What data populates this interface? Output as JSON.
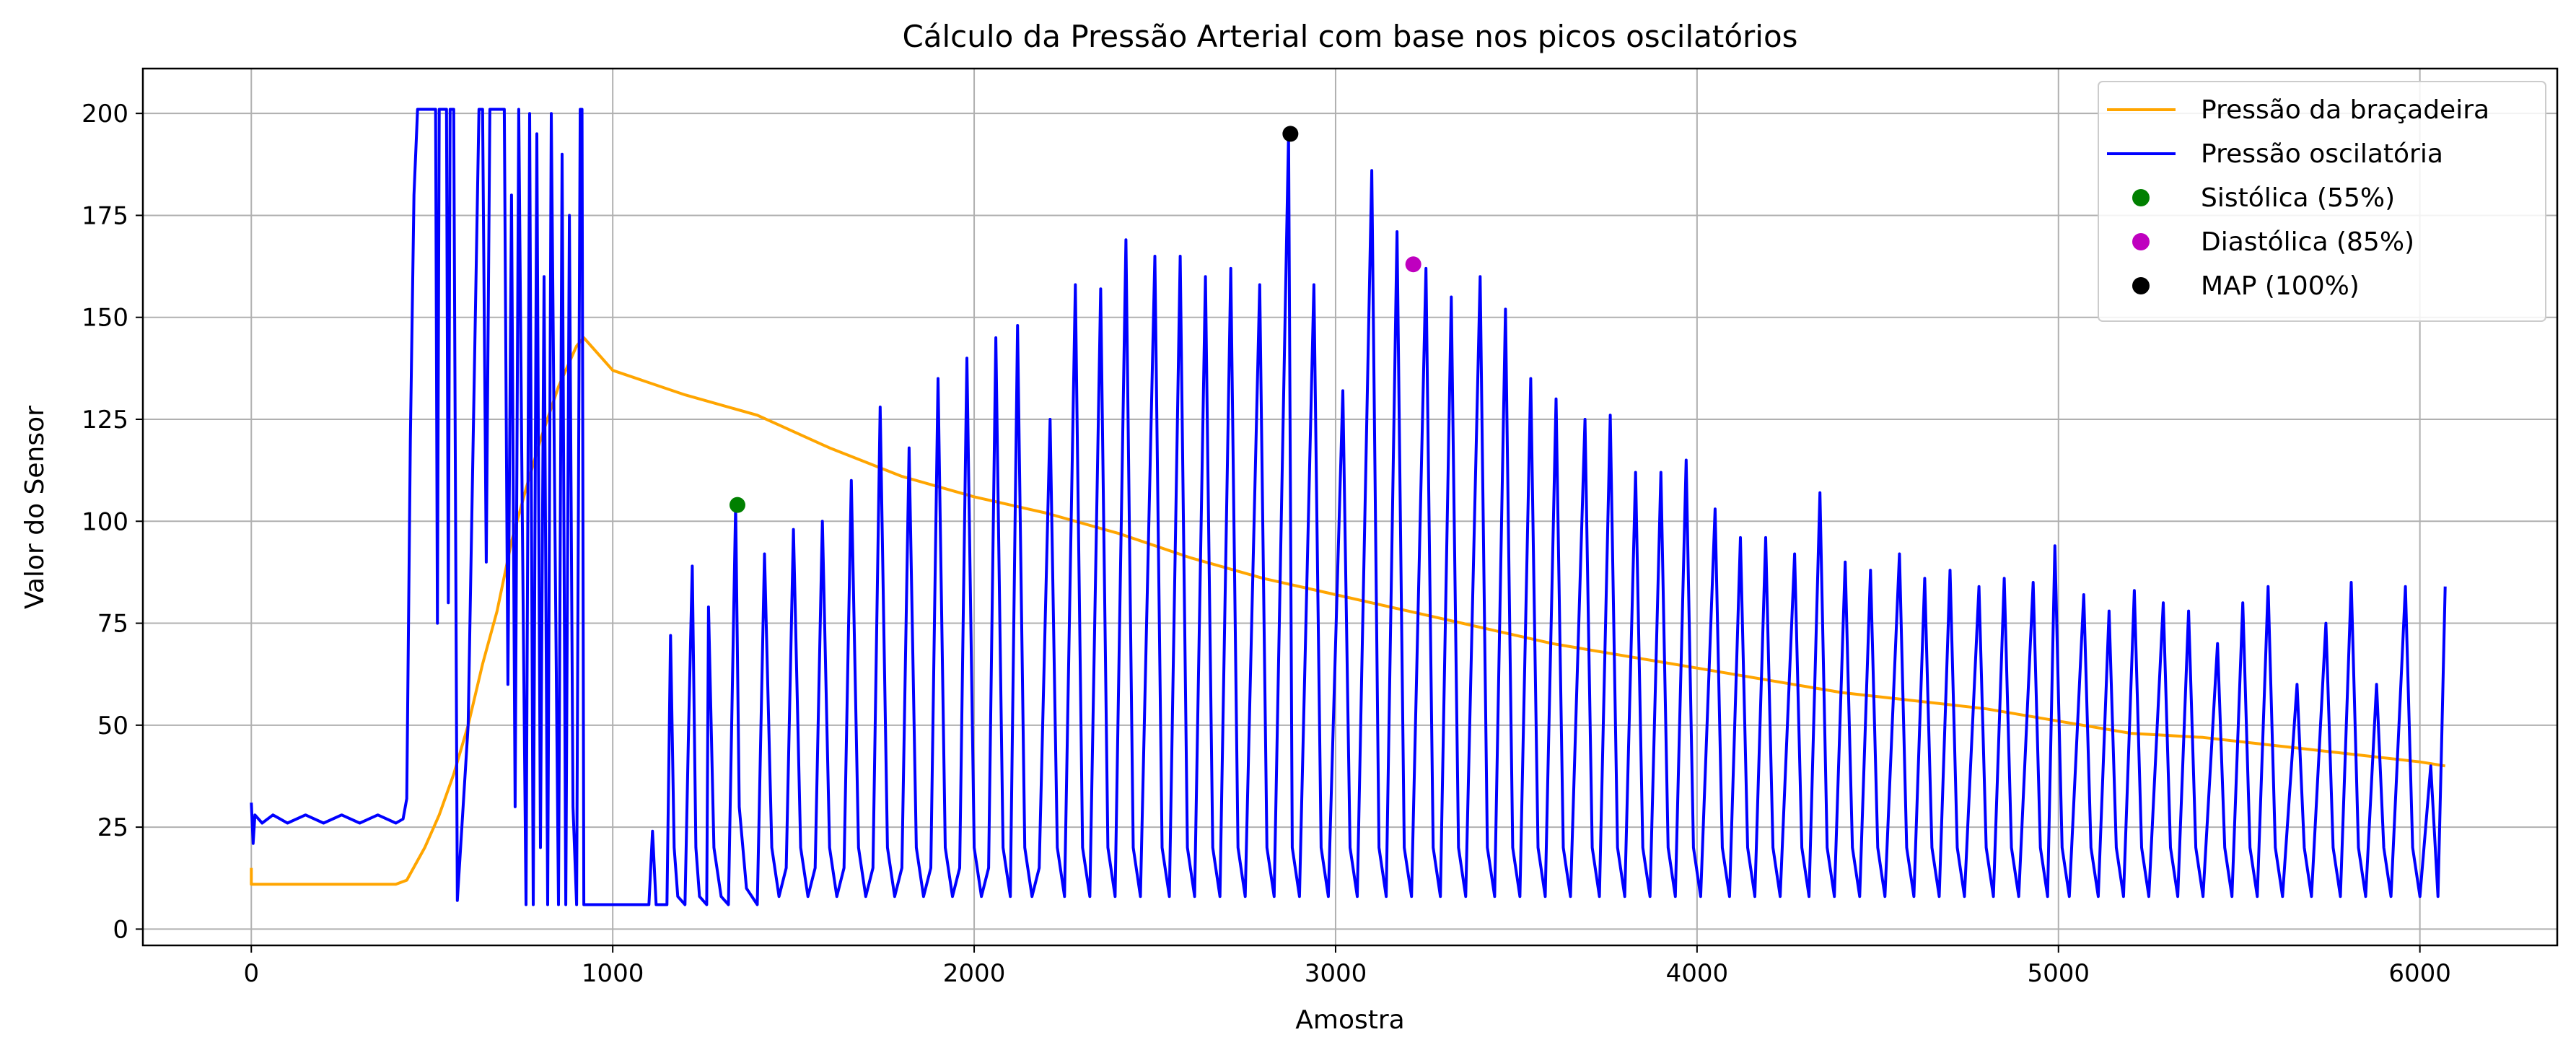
{
  "chart_data": {
    "type": "line",
    "title": "Cálculo da Pressão Arterial com base nos picos oscilatórios",
    "xlabel": "Amostra",
    "ylabel": "Valor do Sensor",
    "xlim": [
      -300,
      6380
    ],
    "ylim": [
      -4,
      211
    ],
    "x_ticks": [
      0,
      1000,
      2000,
      3000,
      4000,
      5000,
      6000
    ],
    "y_ticks": [
      0,
      25,
      50,
      75,
      100,
      125,
      150,
      175,
      200
    ],
    "grid": true,
    "legend_position": "top-right",
    "series": [
      {
        "name": "Pressão da braçadeira",
        "kind": "line",
        "color": "#FFA500",
        "points": [
          [
            0,
            15
          ],
          [
            0,
            11
          ],
          [
            400,
            11
          ],
          [
            430,
            12
          ],
          [
            480,
            20
          ],
          [
            520,
            28
          ],
          [
            560,
            38
          ],
          [
            600,
            50
          ],
          [
            640,
            65
          ],
          [
            680,
            78
          ],
          [
            720,
            95
          ],
          [
            760,
            108
          ],
          [
            800,
            120
          ],
          [
            850,
            133
          ],
          [
            900,
            143
          ],
          [
            920,
            145
          ],
          [
            1000,
            137
          ],
          [
            1200,
            131
          ],
          [
            1400,
            126
          ],
          [
            1600,
            118
          ],
          [
            1800,
            111
          ],
          [
            2000,
            106
          ],
          [
            2200,
            102
          ],
          [
            2400,
            97
          ],
          [
            2600,
            91
          ],
          [
            2800,
            86
          ],
          [
            3000,
            82
          ],
          [
            3200,
            78
          ],
          [
            3400,
            74
          ],
          [
            3600,
            70
          ],
          [
            3800,
            67
          ],
          [
            4000,
            64
          ],
          [
            4200,
            61
          ],
          [
            4400,
            58
          ],
          [
            4600,
            56
          ],
          [
            4800,
            54
          ],
          [
            5000,
            51
          ],
          [
            5200,
            48
          ],
          [
            5400,
            47
          ],
          [
            5600,
            45
          ],
          [
            5800,
            43
          ],
          [
            6000,
            41
          ],
          [
            6070,
            40
          ]
        ]
      },
      {
        "name": "Pressão oscilatória",
        "kind": "line",
        "color": "#0000FF",
        "points": [
          [
            0,
            31
          ],
          [
            5,
            21
          ],
          [
            10,
            28
          ],
          [
            30,
            26
          ],
          [
            60,
            28
          ],
          [
            100,
            26
          ],
          [
            150,
            28
          ],
          [
            200,
            26
          ],
          [
            250,
            28
          ],
          [
            300,
            26
          ],
          [
            350,
            28
          ],
          [
            400,
            26
          ],
          [
            420,
            27
          ],
          [
            430,
            32
          ],
          [
            440,
            120
          ],
          [
            450,
            180
          ],
          [
            460,
            201
          ],
          [
            510,
            201
          ],
          [
            515,
            75
          ],
          [
            520,
            201
          ],
          [
            540,
            201
          ],
          [
            545,
            80
          ],
          [
            550,
            201
          ],
          [
            560,
            201
          ],
          [
            570,
            7
          ],
          [
            600,
            50
          ],
          [
            630,
            201
          ],
          [
            640,
            201
          ],
          [
            650,
            90
          ],
          [
            660,
            201
          ],
          [
            700,
            201
          ],
          [
            710,
            60
          ],
          [
            720,
            180
          ],
          [
            730,
            30
          ],
          [
            740,
            201
          ],
          [
            750,
            100
          ],
          [
            760,
            6
          ],
          [
            770,
            200
          ],
          [
            780,
            6
          ],
          [
            790,
            195
          ],
          [
            800,
            20
          ],
          [
            810,
            160
          ],
          [
            820,
            6
          ],
          [
            830,
            200
          ],
          [
            840,
            100
          ],
          [
            850,
            6
          ],
          [
            860,
            190
          ],
          [
            870,
            6
          ],
          [
            880,
            175
          ],
          [
            890,
            30
          ],
          [
            900,
            6
          ],
          [
            910,
            201
          ],
          [
            915,
            201
          ],
          [
            920,
            6
          ],
          [
            1000,
            6
          ],
          [
            1100,
            6
          ],
          [
            1110,
            24
          ],
          [
            1120,
            6
          ],
          [
            1150,
            6
          ],
          [
            1160,
            72
          ],
          [
            1170,
            20
          ],
          [
            1180,
            8
          ],
          [
            1200,
            6
          ],
          [
            1210,
            50
          ],
          [
            1220,
            89
          ],
          [
            1230,
            20
          ],
          [
            1240,
            8
          ],
          [
            1260,
            6
          ],
          [
            1265,
            79
          ],
          [
            1280,
            20
          ],
          [
            1300,
            8
          ],
          [
            1320,
            6
          ],
          [
            1340,
            104
          ],
          [
            1350,
            30
          ],
          [
            1370,
            10
          ],
          [
            1400,
            6
          ],
          [
            1420,
            92
          ],
          [
            1440,
            20
          ],
          [
            1460,
            8
          ],
          [
            1480,
            15
          ],
          [
            1500,
            98
          ],
          [
            1520,
            20
          ],
          [
            1540,
            8
          ],
          [
            1560,
            15
          ],
          [
            1580,
            100
          ],
          [
            1600,
            20
          ],
          [
            1620,
            8
          ],
          [
            1640,
            15
          ],
          [
            1660,
            110
          ],
          [
            1680,
            20
          ],
          [
            1700,
            8
          ],
          [
            1720,
            15
          ],
          [
            1740,
            128
          ],
          [
            1760,
            20
          ],
          [
            1780,
            8
          ],
          [
            1800,
            15
          ],
          [
            1820,
            118
          ],
          [
            1840,
            20
          ],
          [
            1860,
            8
          ],
          [
            1880,
            15
          ],
          [
            1900,
            135
          ],
          [
            1920,
            20
          ],
          [
            1940,
            8
          ],
          [
            1960,
            15
          ],
          [
            1980,
            140
          ],
          [
            2000,
            20
          ],
          [
            2020,
            8
          ],
          [
            2040,
            15
          ],
          [
            2060,
            145
          ],
          [
            2080,
            20
          ],
          [
            2100,
            8
          ],
          [
            2120,
            148
          ],
          [
            2140,
            20
          ],
          [
            2160,
            8
          ],
          [
            2180,
            15
          ],
          [
            2210,
            125
          ],
          [
            2230,
            20
          ],
          [
            2250,
            8
          ],
          [
            2280,
            158
          ],
          [
            2300,
            20
          ],
          [
            2320,
            8
          ],
          [
            2350,
            157
          ],
          [
            2370,
            20
          ],
          [
            2390,
            8
          ],
          [
            2420,
            169
          ],
          [
            2440,
            20
          ],
          [
            2460,
            8
          ],
          [
            2500,
            165
          ],
          [
            2520,
            20
          ],
          [
            2540,
            8
          ],
          [
            2570,
            165
          ],
          [
            2590,
            20
          ],
          [
            2610,
            8
          ],
          [
            2640,
            160
          ],
          [
            2660,
            20
          ],
          [
            2680,
            8
          ],
          [
            2710,
            162
          ],
          [
            2730,
            20
          ],
          [
            2750,
            8
          ],
          [
            2790,
            158
          ],
          [
            2810,
            20
          ],
          [
            2830,
            8
          ],
          [
            2870,
            195
          ],
          [
            2880,
            20
          ],
          [
            2900,
            8
          ],
          [
            2940,
            158
          ],
          [
            2960,
            20
          ],
          [
            2980,
            8
          ],
          [
            3020,
            132
          ],
          [
            3040,
            20
          ],
          [
            3060,
            8
          ],
          [
            3100,
            186
          ],
          [
            3120,
            20
          ],
          [
            3140,
            8
          ],
          [
            3170,
            171
          ],
          [
            3190,
            20
          ],
          [
            3210,
            8
          ],
          [
            3250,
            162
          ],
          [
            3270,
            20
          ],
          [
            3290,
            8
          ],
          [
            3320,
            155
          ],
          [
            3340,
            20
          ],
          [
            3360,
            8
          ],
          [
            3400,
            160
          ],
          [
            3420,
            20
          ],
          [
            3440,
            8
          ],
          [
            3470,
            152
          ],
          [
            3490,
            20
          ],
          [
            3510,
            8
          ],
          [
            3540,
            135
          ],
          [
            3560,
            20
          ],
          [
            3580,
            8
          ],
          [
            3610,
            130
          ],
          [
            3630,
            20
          ],
          [
            3650,
            8
          ],
          [
            3690,
            125
          ],
          [
            3710,
            20
          ],
          [
            3730,
            8
          ],
          [
            3760,
            126
          ],
          [
            3780,
            20
          ],
          [
            3800,
            8
          ],
          [
            3830,
            112
          ],
          [
            3850,
            20
          ],
          [
            3870,
            8
          ],
          [
            3900,
            112
          ],
          [
            3920,
            20
          ],
          [
            3940,
            8
          ],
          [
            3970,
            115
          ],
          [
            3990,
            20
          ],
          [
            4010,
            8
          ],
          [
            4050,
            103
          ],
          [
            4070,
            20
          ],
          [
            4090,
            8
          ],
          [
            4120,
            96
          ],
          [
            4140,
            20
          ],
          [
            4160,
            8
          ],
          [
            4190,
            96
          ],
          [
            4210,
            20
          ],
          [
            4230,
            8
          ],
          [
            4270,
            92
          ],
          [
            4290,
            20
          ],
          [
            4310,
            8
          ],
          [
            4340,
            107
          ],
          [
            4360,
            20
          ],
          [
            4380,
            8
          ],
          [
            4410,
            90
          ],
          [
            4430,
            20
          ],
          [
            4450,
            8
          ],
          [
            4480,
            88
          ],
          [
            4500,
            20
          ],
          [
            4520,
            8
          ],
          [
            4560,
            92
          ],
          [
            4580,
            20
          ],
          [
            4600,
            8
          ],
          [
            4630,
            86
          ],
          [
            4650,
            20
          ],
          [
            4670,
            8
          ],
          [
            4700,
            88
          ],
          [
            4720,
            20
          ],
          [
            4740,
            8
          ],
          [
            4780,
            84
          ],
          [
            4800,
            20
          ],
          [
            4820,
            8
          ],
          [
            4850,
            86
          ],
          [
            4870,
            20
          ],
          [
            4890,
            8
          ],
          [
            4930,
            85
          ],
          [
            4950,
            20
          ],
          [
            4970,
            8
          ],
          [
            4990,
            94
          ],
          [
            5010,
            20
          ],
          [
            5030,
            8
          ],
          [
            5070,
            82
          ],
          [
            5090,
            20
          ],
          [
            5110,
            8
          ],
          [
            5140,
            78
          ],
          [
            5160,
            20
          ],
          [
            5180,
            8
          ],
          [
            5210,
            83
          ],
          [
            5230,
            20
          ],
          [
            5250,
            8
          ],
          [
            5290,
            80
          ],
          [
            5310,
            20
          ],
          [
            5330,
            8
          ],
          [
            5360,
            78
          ],
          [
            5380,
            20
          ],
          [
            5400,
            8
          ],
          [
            5440,
            70
          ],
          [
            5460,
            20
          ],
          [
            5480,
            8
          ],
          [
            5510,
            80
          ],
          [
            5530,
            20
          ],
          [
            5550,
            8
          ],
          [
            5580,
            84
          ],
          [
            5600,
            20
          ],
          [
            5620,
            8
          ],
          [
            5660,
            60
          ],
          [
            5680,
            20
          ],
          [
            5700,
            8
          ],
          [
            5740,
            75
          ],
          [
            5760,
            20
          ],
          [
            5780,
            8
          ],
          [
            5810,
            85
          ],
          [
            5830,
            20
          ],
          [
            5850,
            8
          ],
          [
            5880,
            60
          ],
          [
            5900,
            20
          ],
          [
            5920,
            8
          ],
          [
            5960,
            84
          ],
          [
            5980,
            20
          ],
          [
            6000,
            8
          ],
          [
            6030,
            40
          ],
          [
            6050,
            8
          ],
          [
            6060,
            45
          ],
          [
            6070,
            84
          ]
        ]
      },
      {
        "name": "Sistólica (55%)",
        "kind": "marker",
        "color": "#008000",
        "points": [
          [
            1345,
            104
          ]
        ]
      },
      {
        "name": "Diastólica (85%)",
        "kind": "marker",
        "color": "#BF00BF",
        "points": [
          [
            3215,
            163
          ]
        ]
      },
      {
        "name": "MAP (100%)",
        "kind": "marker",
        "color": "#000000",
        "points": [
          [
            2875,
            195
          ]
        ]
      }
    ]
  }
}
